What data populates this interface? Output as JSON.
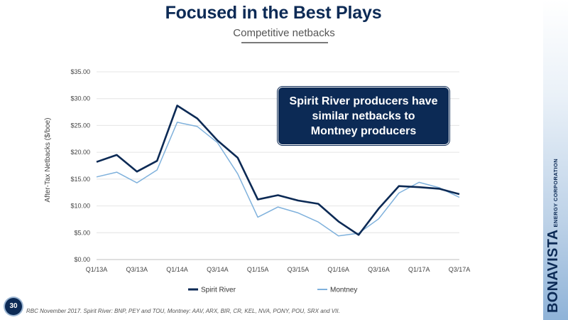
{
  "slide": {
    "title": "Focused in the Best Plays",
    "subtitle": "Competitive netbacks",
    "page_number": "30",
    "footnote": "RBC November 2017. Spirit River: BNP, PEY and TOU, Montney: AAV, ARX, BIR, CR, KEL, NVA, PONY, POU, SRX and VII.",
    "brand_name": "BONAVISTA",
    "brand_sub": "ENERGY CORPORATION",
    "callout": "Spirit River producers have similar netbacks to Montney producers"
  },
  "colors": {
    "spirit_river": "#0c2a55",
    "montney": "#7fb1dc",
    "title": "#0c2a55"
  },
  "chart_data": {
    "type": "line",
    "title": "",
    "xlabel": "",
    "ylabel": "After-Tax Netbacks ($/boe)",
    "ylim": [
      0,
      35
    ],
    "yticks": [
      "$0.00",
      "$5.00",
      "$10.00",
      "$15.00",
      "$20.00",
      "$25.00",
      "$30.00",
      "$35.00"
    ],
    "grid": true,
    "legend": "bottom",
    "x": [
      "Q1/13A",
      "Q2/13A",
      "Q3/13A",
      "Q4/13A",
      "Q1/14A",
      "Q2/14A",
      "Q3/14A",
      "Q4/14A",
      "Q1/15A",
      "Q2/15A",
      "Q3/15A",
      "Q4/15A",
      "Q1/16A",
      "Q2/16A",
      "Q3/16A",
      "Q4/16A",
      "Q1/17A",
      "Q2/17A",
      "Q3/17A"
    ],
    "xtick_labels": [
      "Q1/13A",
      "",
      "Q3/13A",
      "",
      "Q1/14A",
      "",
      "Q3/14A",
      "",
      "Q1/15A",
      "",
      "Q3/15A",
      "",
      "Q1/16A",
      "",
      "Q3/16A",
      "",
      "Q1/17A",
      "",
      "Q3/17A"
    ],
    "series": [
      {
        "name": "Spirit River",
        "values": [
          18.2,
          19.5,
          16.4,
          18.4,
          28.7,
          26.3,
          22.2,
          19.0,
          11.2,
          12.0,
          11.0,
          10.4,
          7.1,
          4.6,
          9.5,
          13.7,
          13.5,
          13.2,
          12.2
        ]
      },
      {
        "name": "Montney",
        "values": [
          15.4,
          16.3,
          14.3,
          16.7,
          25.6,
          24.8,
          21.8,
          16.0,
          7.9,
          9.8,
          8.7,
          7.0,
          4.4,
          4.9,
          7.6,
          12.4,
          14.4,
          13.4,
          11.6
        ]
      }
    ]
  }
}
